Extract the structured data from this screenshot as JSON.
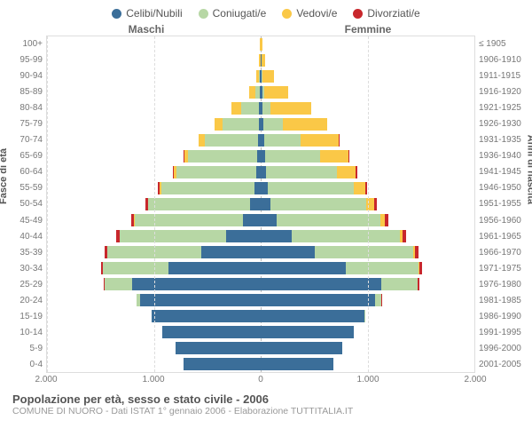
{
  "legend": [
    {
      "label": "Celibi/Nubili",
      "color": "#3b6e99"
    },
    {
      "label": "Coniugati/e",
      "color": "#b7d7a5"
    },
    {
      "label": "Vedovi/e",
      "color": "#fac847"
    },
    {
      "label": "Divorziati/e",
      "color": "#c8272c"
    }
  ],
  "gender": {
    "left": "Maschi",
    "right": "Femmine"
  },
  "axis": {
    "left_title": "Fasce di età",
    "right_title": "Anni di nascita"
  },
  "colors": {
    "grid": "#ddd",
    "center": "#bbb",
    "background": "#ffffff"
  },
  "x": {
    "max": 2000,
    "ticks": [
      2000,
      1000,
      0,
      1000,
      2000
    ],
    "labels": [
      "2.000",
      "1.000",
      "0",
      "1.000",
      "2.000"
    ]
  },
  "age_groups": [
    "100+",
    "95-99",
    "90-94",
    "85-89",
    "80-84",
    "75-79",
    "70-74",
    "65-69",
    "60-64",
    "55-59",
    "50-54",
    "45-49",
    "40-44",
    "35-39",
    "30-34",
    "25-29",
    "20-24",
    "15-19",
    "10-14",
    "5-9",
    "0-4"
  ],
  "birth_years": [
    "≤ 1905",
    "1906-1910",
    "1911-1915",
    "1916-1920",
    "1921-1925",
    "1926-1930",
    "1931-1935",
    "1936-1940",
    "1941-1945",
    "1946-1950",
    "1951-1955",
    "1956-1960",
    "1961-1965",
    "1966-1970",
    "1971-1975",
    "1976-1980",
    "1981-1985",
    "1986-1990",
    "1991-1995",
    "1996-2000",
    "2001-2005"
  ],
  "data": [
    {
      "m": [
        0,
        0,
        5,
        0
      ],
      "f": [
        0,
        0,
        15,
        0
      ]
    },
    {
      "m": [
        3,
        0,
        10,
        0
      ],
      "f": [
        5,
        0,
        40,
        0
      ]
    },
    {
      "m": [
        8,
        5,
        25,
        0
      ],
      "f": [
        10,
        5,
        110,
        0
      ]
    },
    {
      "m": [
        10,
        40,
        60,
        0
      ],
      "f": [
        15,
        15,
        230,
        0
      ]
    },
    {
      "m": [
        15,
        170,
        90,
        0
      ],
      "f": [
        20,
        70,
        380,
        0
      ]
    },
    {
      "m": [
        20,
        340,
        70,
        0
      ],
      "f": [
        25,
        180,
        420,
        0
      ]
    },
    {
      "m": [
        25,
        500,
        55,
        0
      ],
      "f": [
        30,
        340,
        360,
        5
      ]
    },
    {
      "m": [
        30,
        650,
        35,
        5
      ],
      "f": [
        40,
        520,
        260,
        10
      ]
    },
    {
      "m": [
        40,
        750,
        20,
        10
      ],
      "f": [
        50,
        660,
        180,
        15
      ]
    },
    {
      "m": [
        60,
        870,
        15,
        15
      ],
      "f": [
        70,
        800,
        110,
        20
      ]
    },
    {
      "m": [
        100,
        950,
        8,
        25
      ],
      "f": [
        90,
        900,
        70,
        30
      ]
    },
    {
      "m": [
        170,
        1010,
        5,
        30
      ],
      "f": [
        150,
        970,
        40,
        35
      ]
    },
    {
      "m": [
        320,
        1000,
        3,
        30
      ],
      "f": [
        290,
        1010,
        25,
        40
      ]
    },
    {
      "m": [
        560,
        880,
        0,
        25
      ],
      "f": [
        510,
        920,
        15,
        35
      ]
    },
    {
      "m": [
        860,
        620,
        0,
        15
      ],
      "f": [
        800,
        680,
        8,
        25
      ]
    },
    {
      "m": [
        1200,
        260,
        0,
        5
      ],
      "f": [
        1130,
        340,
        3,
        10
      ]
    },
    {
      "m": [
        1130,
        30,
        0,
        0
      ],
      "f": [
        1070,
        60,
        0,
        3
      ]
    },
    {
      "m": [
        1020,
        0,
        0,
        0
      ],
      "f": [
        970,
        5,
        0,
        0
      ]
    },
    {
      "m": [
        920,
        0,
        0,
        0
      ],
      "f": [
        870,
        0,
        0,
        0
      ]
    },
    {
      "m": [
        800,
        0,
        0,
        0
      ],
      "f": [
        760,
        0,
        0,
        0
      ]
    },
    {
      "m": [
        720,
        0,
        0,
        0
      ],
      "f": [
        680,
        0,
        0,
        0
      ]
    }
  ],
  "footer": {
    "title": "Popolazione per età, sesso e stato civile - 2006",
    "sub": "COMUNE DI NUORO - Dati ISTAT 1° gennaio 2006 - Elaborazione TUTTITALIA.IT"
  }
}
